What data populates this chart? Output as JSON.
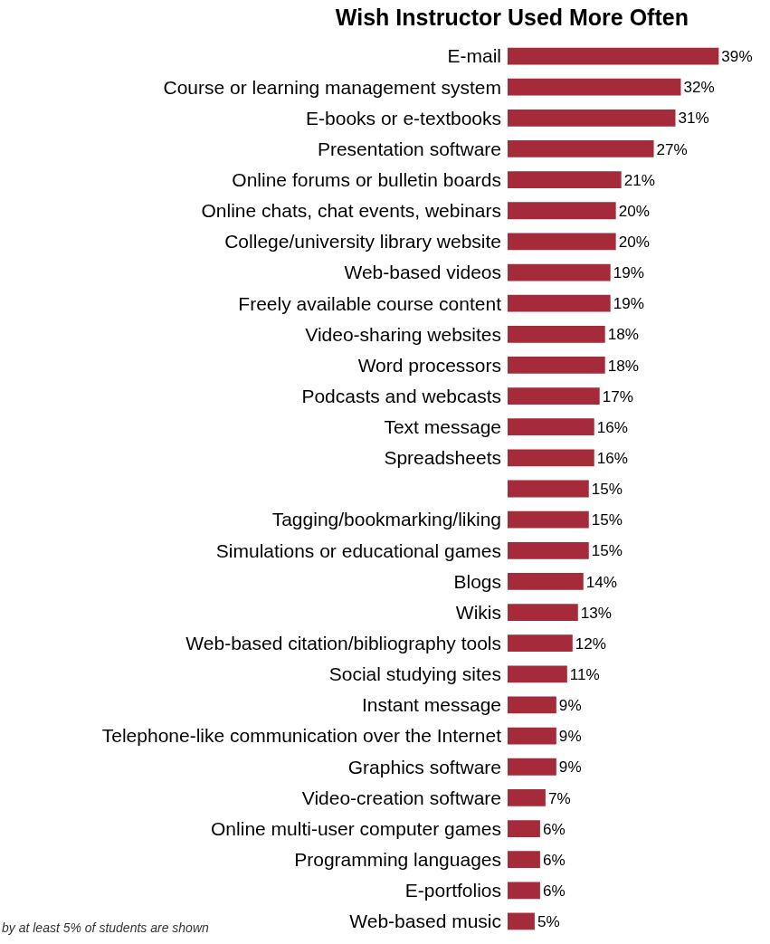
{
  "chart_data": {
    "type": "bar",
    "orientation": "horizontal",
    "title": "Wish Instructor Used More Often",
    "categories": [
      "E-mail",
      "Course or learning management system",
      "E-books or e-textbooks",
      "Presentation software",
      "Online forums or bulletin boards",
      "Online chats, chat events, webinars",
      "College/university library website",
      "Web-based videos",
      "Freely available course content",
      "Video-sharing websites",
      "Word processors",
      "Podcasts and webcasts",
      "Text message",
      "Spreadsheets",
      null,
      "Tagging/bookmarking/liking",
      "Simulations or educational games",
      "Blogs",
      "Wikis",
      "Web-based citation/bibliography tools",
      "Social studying sites",
      "Instant message",
      "Telephone-like communication over the Internet",
      "Graphics software",
      "Video-creation software",
      "Online multi-user computer games",
      "Programming languages",
      "E-portfolios",
      "Web-based music"
    ],
    "values": [
      39,
      32,
      31,
      27,
      21,
      20,
      20,
      19,
      19,
      18,
      18,
      17,
      16,
      16,
      15,
      15,
      15,
      14,
      13,
      12,
      11,
      9,
      9,
      9,
      7,
      6,
      6,
      6,
      5
    ],
    "value_labels": [
      "39%",
      "32%",
      "31%",
      "27%",
      "21%",
      "20%",
      "20%",
      "19%",
      "19%",
      "18%",
      "18%",
      "17%",
      "16%",
      "16%",
      "15%",
      "15%",
      "15%",
      "14%",
      "13%",
      "12%",
      "11%",
      "9%",
      "9%",
      "9%",
      "7%",
      "6%",
      "6%",
      "6%",
      "5%"
    ],
    "color": "#a52a3a",
    "annotations": [
      "by at least 5% of students are shown"
    ]
  }
}
